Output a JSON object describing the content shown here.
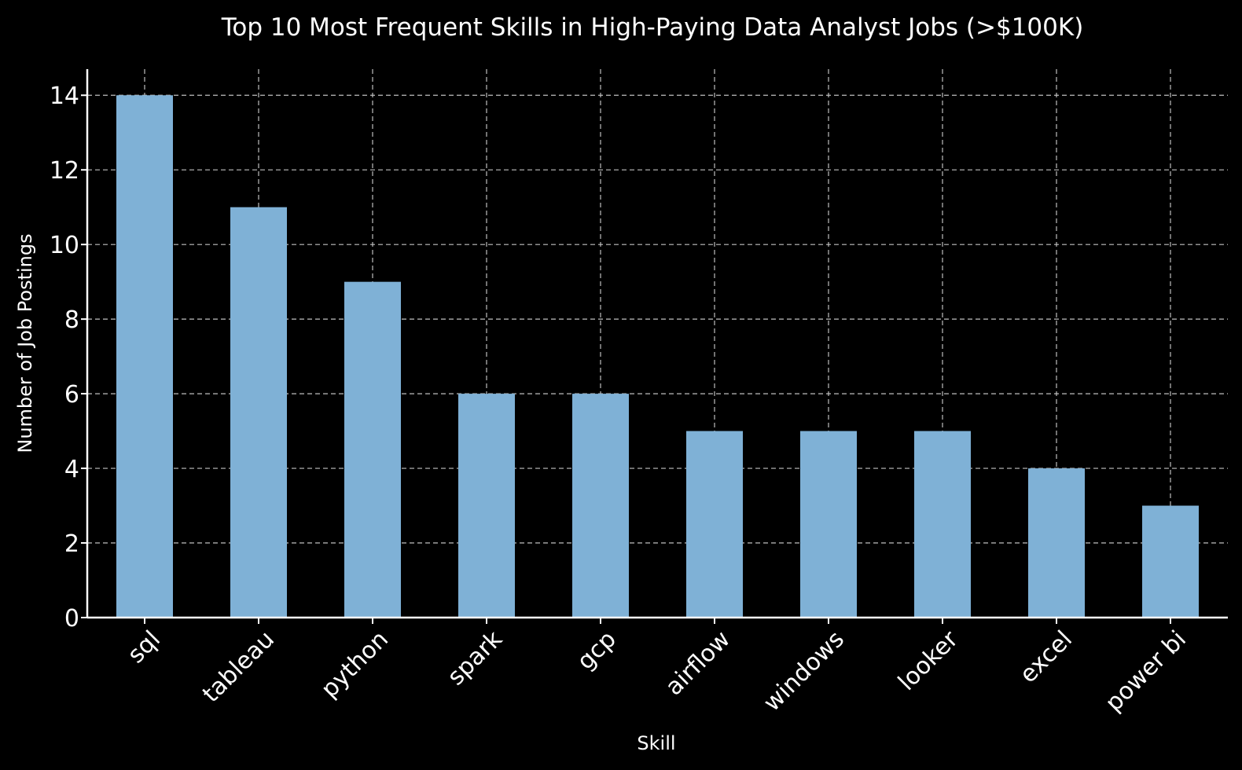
{
  "chart_data": {
    "type": "bar",
    "title": "Top 10 Most Frequent Skills in High-Paying Data Analyst Jobs (>$100K)",
    "xlabel": "Skill",
    "ylabel": "Number of Job Postings",
    "categories": [
      "sql",
      "tableau",
      "python",
      "spark",
      "gcp",
      "airflow",
      "windows",
      "looker",
      "excel",
      "power bi"
    ],
    "values": [
      14,
      11,
      9,
      6,
      6,
      5,
      5,
      5,
      4,
      3
    ],
    "ylim": [
      0,
      14.7
    ],
    "yticks": [
      0,
      2,
      4,
      6,
      8,
      10,
      12,
      14
    ],
    "grid": true,
    "bar_color": "#7fb1d6",
    "background_color": "#000000"
  }
}
